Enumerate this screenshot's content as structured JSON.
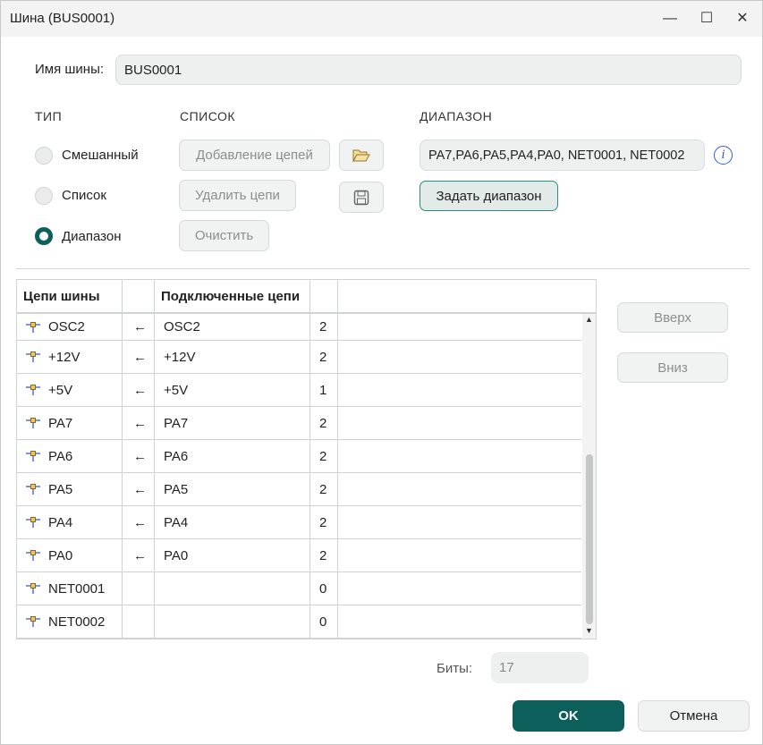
{
  "window": {
    "title": "Шина (BUS0001)"
  },
  "bus_name": {
    "label": "Имя шины:",
    "value": "BUS0001"
  },
  "sections": {
    "type": "ТИП",
    "list": "СПИСОК",
    "range": "ДИАПАЗОН"
  },
  "type_options": [
    {
      "label": "Смешанный",
      "selected": false
    },
    {
      "label": "Список",
      "selected": false
    },
    {
      "label": "Диапазон",
      "selected": true
    }
  ],
  "list_buttons": {
    "add": "Добавление цепей",
    "remove": "Удалить цепи",
    "clear": "Очистить"
  },
  "range": {
    "value": "PA7,PA6,PA5,PA4,PA0, NET0001, NET0002",
    "set_button": "Задать диапазон"
  },
  "table": {
    "headers": [
      "Цепи шины",
      "",
      "Подключенные цепи",
      "",
      ""
    ],
    "rows": [
      {
        "bus": "OSC2",
        "arrow": "←",
        "connected": "OSC2",
        "count": "2"
      },
      {
        "bus": "+12V",
        "arrow": "←",
        "connected": "+12V",
        "count": "2"
      },
      {
        "bus": "+5V",
        "arrow": "←",
        "connected": "+5V",
        "count": "1"
      },
      {
        "bus": "PA7",
        "arrow": "←",
        "connected": "PA7",
        "count": "2"
      },
      {
        "bus": "PA6",
        "arrow": "←",
        "connected": "PA6",
        "count": "2"
      },
      {
        "bus": "PA5",
        "arrow": "←",
        "connected": "PA5",
        "count": "2"
      },
      {
        "bus": "PA4",
        "arrow": "←",
        "connected": "PA4",
        "count": "2"
      },
      {
        "bus": "PA0",
        "arrow": "←",
        "connected": "PA0",
        "count": "2"
      },
      {
        "bus": "NET0001",
        "arrow": "",
        "connected": "",
        "count": "0"
      },
      {
        "bus": "NET0002",
        "arrow": "",
        "connected": "",
        "count": "0"
      }
    ]
  },
  "side_buttons": {
    "up": "Вверх",
    "down": "Вниз"
  },
  "bits": {
    "label": "Биты:",
    "value": "17"
  },
  "footer": {
    "ok": "OK",
    "cancel": "Отмена"
  },
  "colors": {
    "accent": "#0d5f5c"
  }
}
